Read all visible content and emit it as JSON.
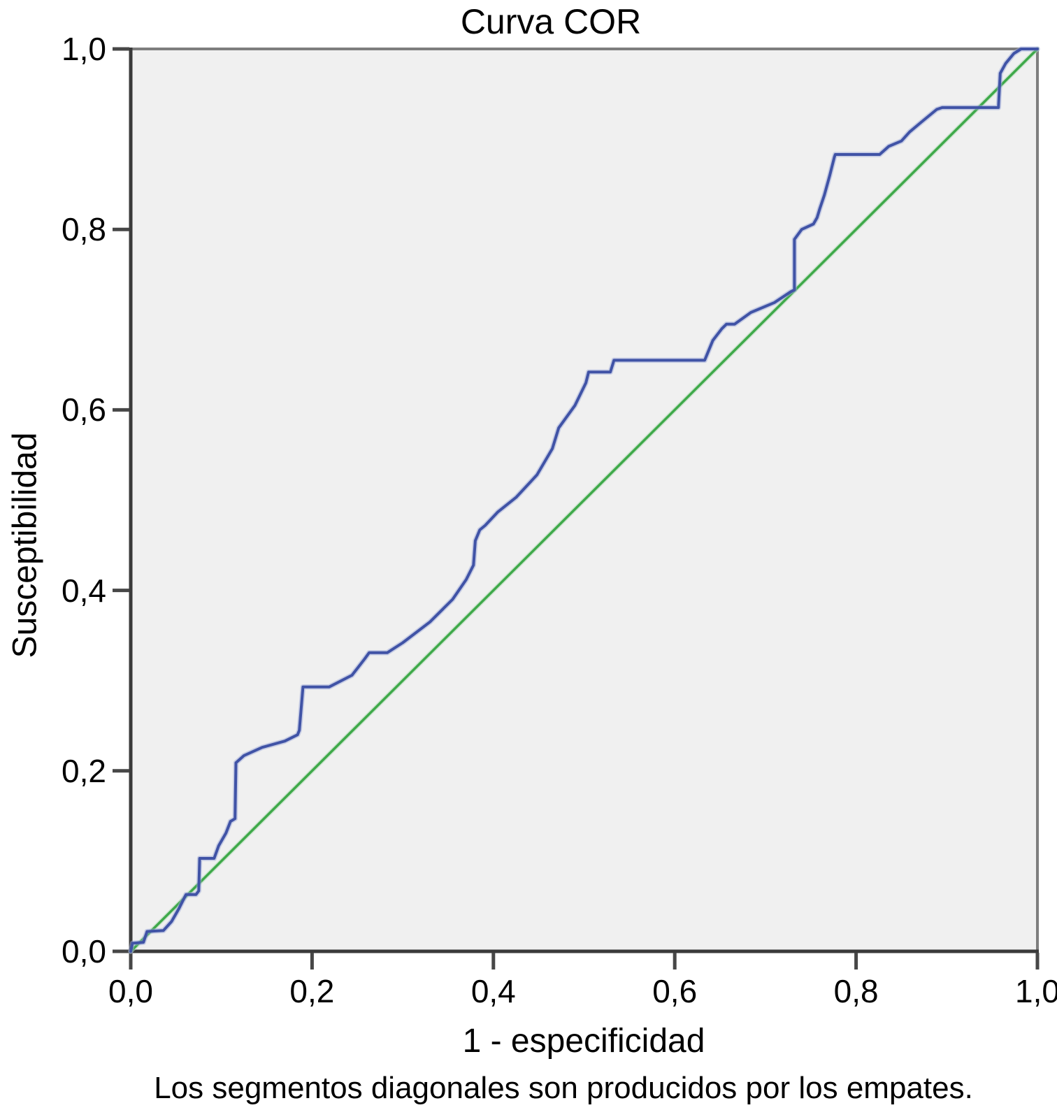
{
  "chart_data": {
    "type": "line",
    "title": "Curva COR",
    "xlabel": "1 - especificidad",
    "ylabel": "Susceptibilidad",
    "caption": "Los segmentos diagonales son producidos por los empates.",
    "xlim": [
      0,
      1
    ],
    "ylim": [
      0,
      1
    ],
    "grid": false,
    "legend": "none",
    "tick_values": [
      0.0,
      0.2,
      0.4,
      0.6,
      0.8,
      1.0
    ],
    "x_tick_labels": [
      "0,0",
      "0,2",
      "0,4",
      "0,6",
      "0,8",
      "1,0"
    ],
    "y_tick_labels": [
      "0,0",
      "0,2",
      "0,4",
      "0,6",
      "0,8",
      "1,0"
    ],
    "colors": {
      "roc": "#4053A6",
      "roc_halo": "#9BA8D8",
      "reference": "#3FA94A",
      "reference_halo": "#A9D9AD",
      "plot_bg": "#F0F0F0",
      "axis": "#3A3A3A",
      "border": "#7E7E7E",
      "tick": "#474747",
      "text": "#000000"
    },
    "series": [
      {
        "name": "Curva COR (ROC)",
        "role": "roc",
        "points": [
          [
            0,
            0
          ],
          [
            0.002,
            0.009
          ],
          [
            0.014,
            0.01
          ],
          [
            0.018,
            0.022
          ],
          [
            0.036,
            0.023
          ],
          [
            0.045,
            0.033
          ],
          [
            0.053,
            0.047
          ],
          [
            0.058,
            0.057
          ],
          [
            0.061,
            0.063
          ],
          [
            0.072,
            0.063
          ],
          [
            0.075,
            0.067
          ],
          [
            0.076,
            0.103
          ],
          [
            0.092,
            0.103
          ],
          [
            0.097,
            0.117
          ],
          [
            0.105,
            0.131
          ],
          [
            0.11,
            0.144
          ],
          [
            0.115,
            0.147
          ],
          [
            0.116,
            0.209
          ],
          [
            0.125,
            0.217
          ],
          [
            0.145,
            0.226
          ],
          [
            0.17,
            0.233
          ],
          [
            0.184,
            0.24
          ],
          [
            0.186,
            0.245
          ],
          [
            0.19,
            0.293
          ],
          [
            0.219,
            0.293
          ],
          [
            0.244,
            0.306
          ],
          [
            0.258,
            0.324
          ],
          [
            0.263,
            0.331
          ],
          [
            0.283,
            0.331
          ],
          [
            0.3,
            0.342
          ],
          [
            0.33,
            0.365
          ],
          [
            0.355,
            0.39
          ],
          [
            0.37,
            0.412
          ],
          [
            0.378,
            0.428
          ],
          [
            0.38,
            0.455
          ],
          [
            0.385,
            0.467
          ],
          [
            0.391,
            0.472
          ],
          [
            0.405,
            0.487
          ],
          [
            0.425,
            0.503
          ],
          [
            0.448,
            0.528
          ],
          [
            0.465,
            0.557
          ],
          [
            0.472,
            0.58
          ],
          [
            0.49,
            0.605
          ],
          [
            0.502,
            0.63
          ],
          [
            0.505,
            0.642
          ],
          [
            0.529,
            0.642
          ],
          [
            0.533,
            0.655
          ],
          [
            0.633,
            0.655
          ],
          [
            0.642,
            0.677
          ],
          [
            0.652,
            0.69
          ],
          [
            0.657,
            0.695
          ],
          [
            0.666,
            0.695
          ],
          [
            0.684,
            0.708
          ],
          [
            0.71,
            0.719
          ],
          [
            0.728,
            0.731
          ],
          [
            0.732,
            0.733
          ],
          [
            0.732,
            0.789
          ],
          [
            0.74,
            0.8
          ],
          [
            0.753,
            0.806
          ],
          [
            0.757,
            0.813
          ],
          [
            0.76,
            0.823
          ],
          [
            0.765,
            0.838
          ],
          [
            0.771,
            0.86
          ],
          [
            0.776,
            0.88
          ],
          [
            0.777,
            0.883
          ],
          [
            0.826,
            0.883
          ],
          [
            0.836,
            0.892
          ],
          [
            0.85,
            0.898
          ],
          [
            0.859,
            0.908
          ],
          [
            0.872,
            0.919
          ],
          [
            0.889,
            0.933
          ],
          [
            0.895,
            0.935
          ],
          [
            0.957,
            0.935
          ],
          [
            0.959,
            0.973
          ],
          [
            0.965,
            0.984
          ],
          [
            0.974,
            0.995
          ],
          [
            0.982,
            1
          ],
          [
            1,
            1
          ]
        ]
      },
      {
        "name": "Línea de referencia diagonal",
        "role": "reference",
        "points": [
          [
            0,
            0
          ],
          [
            1,
            1
          ]
        ]
      }
    ]
  }
}
